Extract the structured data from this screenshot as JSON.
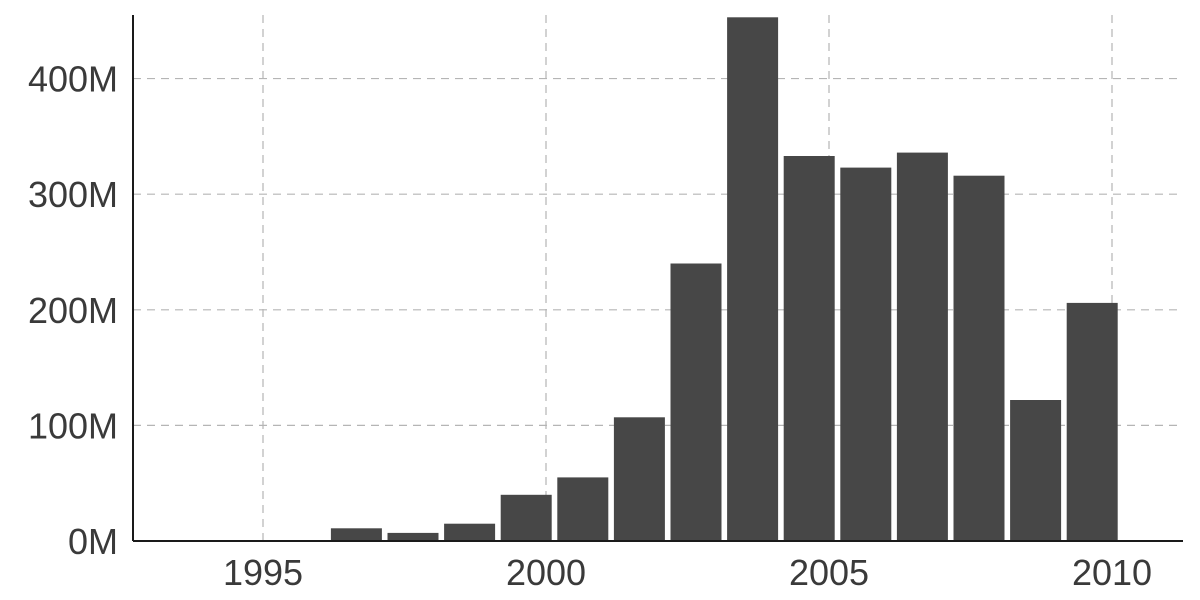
{
  "chart_data": {
    "type": "bar",
    "title": "",
    "xlabel": "",
    "ylabel": "",
    "x": [
      1997,
      1998,
      1999,
      2000,
      2001,
      2002,
      2003,
      2004,
      2005,
      2006,
      2007,
      2008,
      2009,
      2010
    ],
    "values": [
      11000000,
      7000000,
      15000000,
      40000000,
      55000000,
      107000000,
      240000000,
      453000000,
      333000000,
      323000000,
      336000000,
      316000000,
      122000000,
      206000000
    ],
    "xlim": [
      1992.7,
      1993.0
    ],
    "ylim": [
      0,
      455000000
    ],
    "x_ticks": [
      1995,
      2000,
      2005,
      2010
    ],
    "x_tick_labels": [
      "1995",
      "2000",
      "2005",
      "2010"
    ],
    "y_ticks": [
      0,
      100000000,
      200000000,
      300000000,
      400000000
    ],
    "y_tick_labels": [
      "0M",
      "100M",
      "200M",
      "300M",
      "400M"
    ],
    "grid": true,
    "bar_color": "#474747"
  }
}
